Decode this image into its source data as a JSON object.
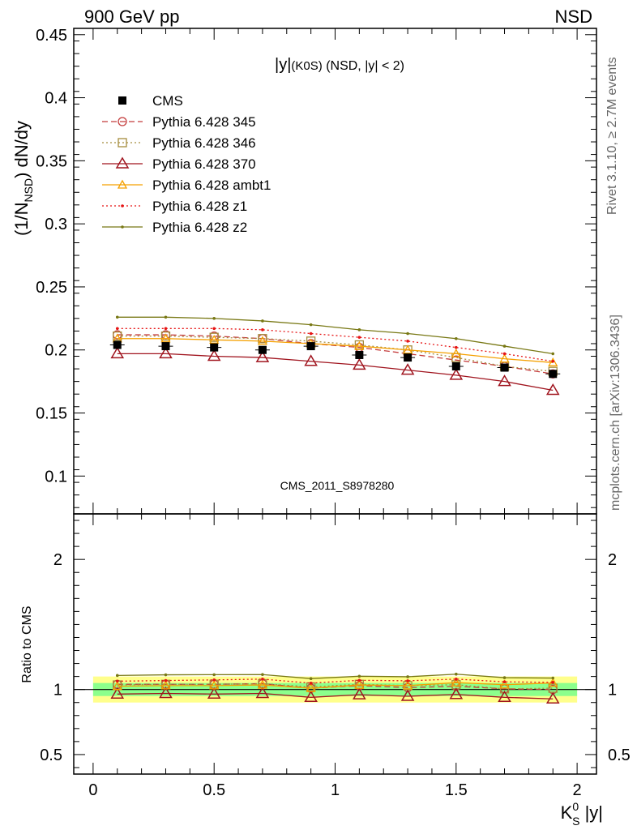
{
  "header": {
    "left": "900 GeV pp",
    "right": "NSD"
  },
  "side_labels": {
    "rivet": "Rivet 3.1.10, ≥ 2.7M events",
    "mcplots": "mcplots.cern.ch [arXiv:1306.3436]"
  },
  "watermark": "CMS_2011_S8978280",
  "colors": {
    "cms": "#000000",
    "p345": "#c43c3c",
    "p346": "#a58c3c",
    "p370": "#a0141e",
    "ambt1": "#f5a000",
    "z1": "#e61414",
    "z2": "#787814",
    "band_outer": "#ffff8c",
    "band_inner": "#8cff8c"
  },
  "chart_data": [
    {
      "type": "line",
      "title": "|y|(K0S) (NSD, |y| < 2)",
      "title_parts": {
        "a": "|y|",
        "b": "(K0S)",
        "c": " (NSD, |y| < 2)"
      },
      "ylabel": "(1/N_NSD) dN/dy",
      "ylabel_parts": {
        "pre": "(1/N",
        "sub": "NSD",
        "post": ") dN/dy"
      },
      "ylim": [
        0.07,
        0.455
      ],
      "xlim": [
        -0.08,
        2.08
      ],
      "yticks": [
        "0.1",
        "0.15",
        "0.2",
        "0.25",
        "0.3",
        "0.35",
        "0.4",
        "0.45"
      ],
      "x": [
        0.1,
        0.3,
        0.5,
        0.7,
        0.9,
        1.1,
        1.3,
        1.5,
        1.7,
        1.9
      ],
      "legend_position": "top-left",
      "data": {
        "name": "CMS",
        "values": [
          0.204,
          0.203,
          0.202,
          0.2,
          0.203,
          0.196,
          0.194,
          0.187,
          0.186,
          0.181
        ]
      },
      "series": [
        {
          "name": "Pythia 6.428 345",
          "values": [
            0.212,
            0.212,
            0.211,
            0.209,
            0.205,
            0.202,
            0.197,
            0.192,
            0.187,
            0.181
          ]
        },
        {
          "name": "Pythia 6.428 346",
          "values": [
            0.211,
            0.211,
            0.21,
            0.209,
            0.207,
            0.204,
            0.2,
            0.194,
            0.187,
            0.183
          ]
        },
        {
          "name": "Pythia 6.428 370",
          "values": [
            0.197,
            0.197,
            0.195,
            0.194,
            0.191,
            0.188,
            0.184,
            0.18,
            0.175,
            0.168
          ]
        },
        {
          "name": "Pythia 6.428 ambt1",
          "values": [
            0.209,
            0.209,
            0.208,
            0.207,
            0.205,
            0.203,
            0.2,
            0.197,
            0.193,
            0.19
          ]
        },
        {
          "name": "Pythia 6.428 z1",
          "values": [
            0.217,
            0.217,
            0.217,
            0.216,
            0.213,
            0.21,
            0.207,
            0.202,
            0.197,
            0.191
          ]
        },
        {
          "name": "Pythia 6.428 z2",
          "values": [
            0.226,
            0.226,
            0.225,
            0.223,
            0.22,
            0.216,
            0.213,
            0.209,
            0.203,
            0.197
          ]
        }
      ]
    },
    {
      "type": "line",
      "ylabel": "Ratio to CMS",
      "xlabel": "K_S^0 |y|",
      "xlabel_parts": {
        "base": "K",
        "sup": "0",
        "sub": "S",
        "post": " |y|"
      },
      "ylim": [
        0.35,
        2.35
      ],
      "xlim": [
        -0.08,
        2.08
      ],
      "yticks": [
        "0.5",
        "1",
        "2"
      ],
      "xticks": [
        "0",
        "0.5",
        "1",
        "1.5",
        "2"
      ],
      "band_outer": [
        0.9,
        1.1
      ],
      "band_inner": [
        0.95,
        1.05
      ],
      "series": [
        {
          "name": "Pythia 6.428 345",
          "values": [
            1.04,
            1.04,
            1.04,
            1.045,
            1.01,
            1.03,
            1.015,
            1.025,
            1.005,
            1.0
          ]
        },
        {
          "name": "Pythia 6.428 346",
          "values": [
            1.035,
            1.04,
            1.04,
            1.045,
            1.02,
            1.04,
            1.03,
            1.037,
            1.005,
            1.01
          ]
        },
        {
          "name": "Pythia 6.428 370",
          "values": [
            0.965,
            0.97,
            0.965,
            0.97,
            0.94,
            0.96,
            0.948,
            0.962,
            0.94,
            0.928
          ]
        },
        {
          "name": "Pythia 6.428 ambt1",
          "values": [
            1.025,
            1.03,
            1.03,
            1.035,
            1.01,
            1.035,
            1.03,
            1.053,
            1.037,
            1.05
          ]
        },
        {
          "name": "Pythia 6.428 z1",
          "values": [
            1.064,
            1.069,
            1.074,
            1.08,
            1.049,
            1.071,
            1.067,
            1.08,
            1.059,
            1.055
          ]
        },
        {
          "name": "Pythia 6.428 z2",
          "values": [
            1.108,
            1.113,
            1.114,
            1.115,
            1.084,
            1.102,
            1.098,
            1.118,
            1.091,
            1.088
          ]
        }
      ]
    }
  ]
}
